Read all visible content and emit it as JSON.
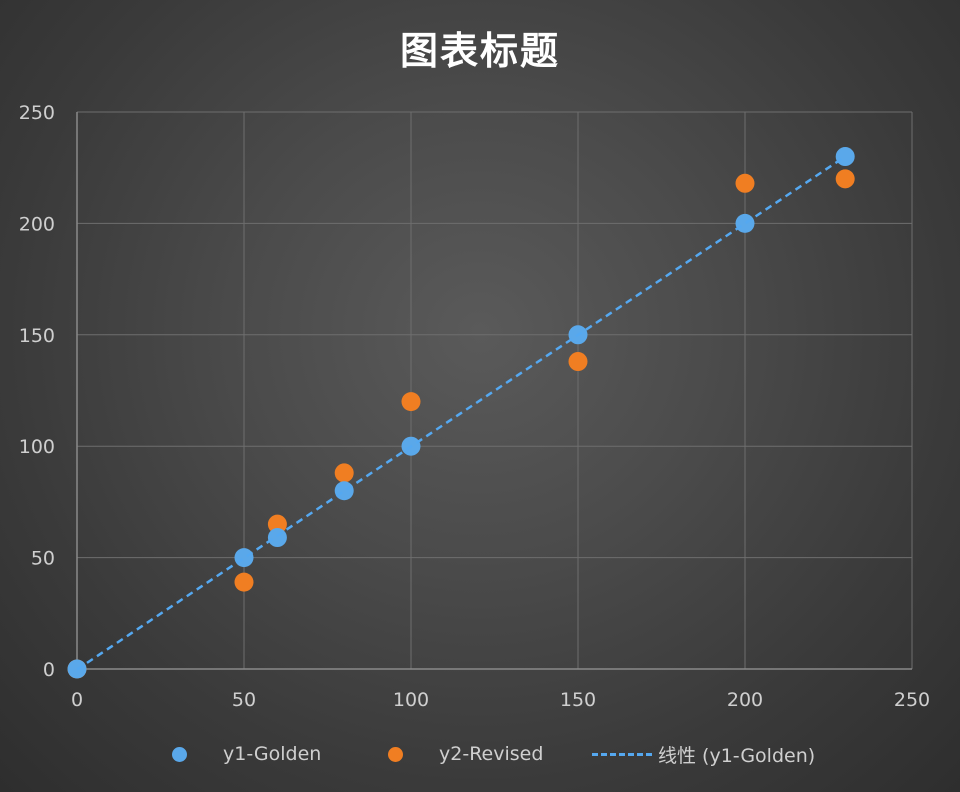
{
  "chart_data": {
    "type": "scatter",
    "title": "图表标题",
    "xlabel": "",
    "ylabel": "",
    "xlim": [
      0,
      250
    ],
    "ylim": [
      0,
      250
    ],
    "xticks": [
      0,
      50,
      100,
      150,
      200,
      250
    ],
    "yticks": [
      0,
      50,
      100,
      150,
      200,
      250
    ],
    "grid": true,
    "legend_position": "bottom",
    "series": [
      {
        "name": "y1-Golden",
        "color": "#5aa8ea",
        "points": [
          [
            0,
            0
          ],
          [
            50,
            50
          ],
          [
            60,
            59
          ],
          [
            80,
            80
          ],
          [
            100,
            100
          ],
          [
            150,
            150
          ],
          [
            200,
            200
          ],
          [
            230,
            230
          ]
        ]
      },
      {
        "name": "y2-Revised",
        "color": "#f07e22",
        "points": [
          [
            0,
            0
          ],
          [
            50,
            39
          ],
          [
            60,
            65
          ],
          [
            80,
            88
          ],
          [
            100,
            120
          ],
          [
            150,
            138
          ],
          [
            200,
            218
          ],
          [
            230,
            220
          ]
        ]
      }
    ],
    "trendline": {
      "name": "线性 (y1-Golden)",
      "of_series": "y1-Golden",
      "style": "dashed",
      "color": "#55a8f0",
      "x_range": [
        0,
        230
      ]
    }
  }
}
